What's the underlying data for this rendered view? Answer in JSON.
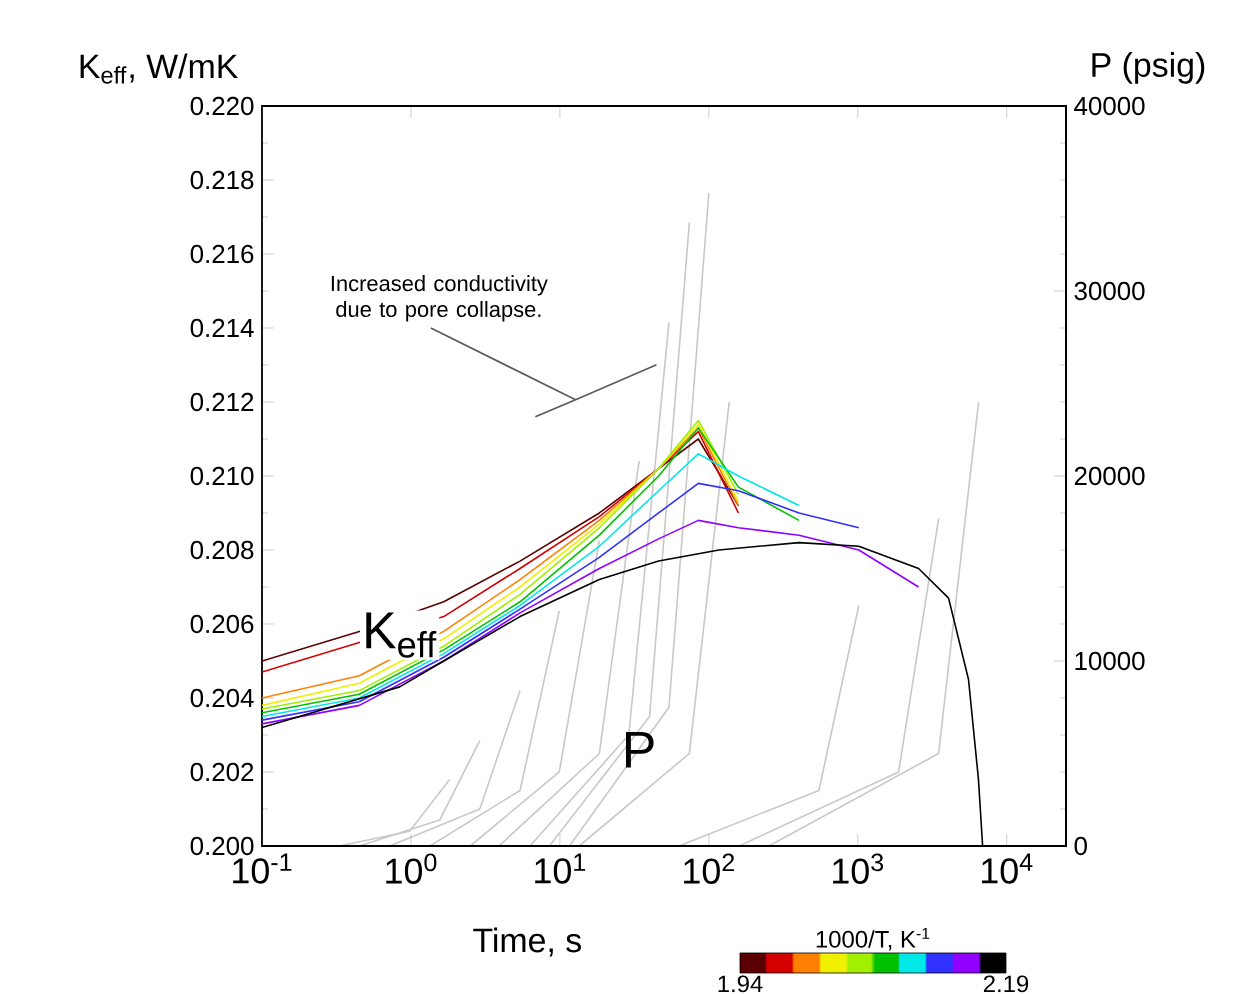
{
  "chart_data": {
    "type": "line",
    "xlabel": "Time, s",
    "ylabel": "K$_{eff}$, W/mK",
    "y2label": "P (psig)",
    "clabel": "1000/T, K$^{-1}$",
    "clim": [
      1.94,
      2.19
    ],
    "cticks": [
      1.94,
      2.19
    ],
    "log": "x",
    "grid": false,
    "marker": "none",
    "line_style": "solid",
    "xlim": [
      0.1,
      25000
    ],
    "xticks": [
      {
        "value": 0.1,
        "label": "10$^{-1}$"
      },
      {
        "value": 1,
        "label": "10$^{0}$"
      },
      {
        "value": 10,
        "label": "10$^{1}$"
      },
      {
        "value": 100,
        "label": "10$^{2}$"
      },
      {
        "value": 1000,
        "label": "10$^{3}$"
      },
      {
        "value": 10000,
        "label": "10$^{4}$"
      }
    ],
    "ylim": [
      0.2,
      0.22
    ],
    "yticks": [
      {
        "value": 0.2,
        "label": "0.200"
      },
      {
        "value": 0.202,
        "label": "0.202"
      },
      {
        "value": 0.204,
        "label": "0.204"
      },
      {
        "value": 0.206,
        "label": "0.206"
      },
      {
        "value": 0.208,
        "label": "0.208"
      },
      {
        "value": 0.21,
        "label": "0.210"
      },
      {
        "value": 0.212,
        "label": "0.212"
      },
      {
        "value": 0.214,
        "label": "0.214"
      },
      {
        "value": 0.216,
        "label": "0.216"
      },
      {
        "value": 0.218,
        "label": "0.218"
      },
      {
        "value": 0.22,
        "label": "0.220"
      }
    ],
    "y2lim": [
      0,
      40000
    ],
    "y2ticks": [
      0,
      10000,
      20000,
      30000,
      40000
    ],
    "annotations": [
      "Increased conductivity due to pore collapse.",
      {
        "text": "K$_{eff}$",
        "x": 0.84,
        "y": 0.2057
      },
      {
        "text": "P",
        "x": 34,
        "y": 0.2026
      }
    ],
    "x": [
      0.1,
      0.45,
      1.66,
      5.4,
      18.4,
      46,
      85,
      158,
      403,
      1016,
      2560
    ],
    "series": [
      {
        "color": "#c8c8c8",
        "axis": "y2",
        "x": [
          0.33,
          0.98,
          1.82
        ],
        "values": [
          0,
          800,
          3600
        ]
      },
      {
        "color": "#c8c8c8",
        "axis": "y2",
        "x": [
          0.45,
          1.56,
          2.9
        ],
        "values": [
          0,
          1400,
          5700
        ]
      },
      {
        "color": "#c8c8c8",
        "axis": "y2",
        "x": [
          0.72,
          2.9,
          5.4
        ],
        "values": [
          0,
          2000,
          8400
        ]
      },
      {
        "color": "#c8c8c8",
        "axis": "y2",
        "x": [
          1.34,
          5.4,
          9.9
        ],
        "values": [
          0,
          3000,
          12700
        ]
      },
      {
        "color": "#c8c8c8",
        "axis": "y2",
        "x": [
          2.5,
          9.9,
          18.4
        ],
        "values": [
          0,
          4000,
          16500
        ]
      },
      {
        "color": "#c8c8c8",
        "axis": "y2",
        "x": [
          3.9,
          18.4,
          34
        ],
        "values": [
          0,
          5000,
          20800
        ]
      },
      {
        "color": "#c8c8c8",
        "axis": "y2",
        "x": [
          6.3,
          29,
          54
        ],
        "values": [
          0,
          6000,
          28300
        ]
      },
      {
        "color": "#c8c8c8",
        "axis": "y2",
        "x": [
          8.5,
          40,
          74
        ],
        "values": [
          0,
          7000,
          33700
        ]
      },
      {
        "color": "#c8c8c8",
        "axis": "y2",
        "x": [
          11.6,
          54,
          100
        ],
        "values": [
          0,
          7500,
          35300
        ]
      },
      {
        "color": "#c8c8c8",
        "axis": "y2",
        "x": [
          13.5,
          74,
          137
        ],
        "values": [
          0,
          5000,
          24000
        ]
      },
      {
        "color": "#c8c8c8",
        "axis": "y2",
        "x": [
          63,
          548,
          1016
        ],
        "values": [
          0,
          3000,
          13000
        ]
      },
      {
        "color": "#c8c8c8",
        "axis": "y2",
        "x": [
          160,
          1880,
          3490
        ],
        "values": [
          0,
          4000,
          17700
        ]
      },
      {
        "color": "#c8c8c8",
        "axis": "y2",
        "x": [
          253,
          3490,
          6470
        ],
        "values": [
          0,
          5000,
          24000
        ]
      },
      {
        "color": "#5a0000",
        "values": [
          0.205,
          0.2058,
          0.2066,
          0.2077,
          0.209,
          0.2102,
          0.211,
          0.2092,
          null,
          null,
          null
        ]
      },
      {
        "color": "#d40000",
        "values": [
          0.2047,
          0.2055,
          0.2062,
          0.2075,
          0.2089,
          0.2102,
          0.2112,
          0.209,
          null,
          null,
          null
        ]
      },
      {
        "color": "#ff8000",
        "values": [
          0.204,
          0.2046,
          0.2058,
          0.2072,
          0.2088,
          0.2102,
          0.2113,
          0.2092,
          null,
          null,
          null
        ]
      },
      {
        "color": "#f0f000",
        "values": [
          0.2038,
          0.2044,
          0.2056,
          0.207,
          0.2087,
          0.2102,
          0.2114,
          0.2093,
          null,
          null,
          null
        ]
      },
      {
        "color": "#a0f000",
        "values": [
          0.2037,
          0.2042,
          0.2054,
          0.2068,
          0.2086,
          0.2102,
          0.2115,
          0.2095,
          null,
          null,
          null
        ]
      },
      {
        "color": "#00c000",
        "values": [
          0.2036,
          0.2041,
          0.2053,
          0.2066,
          0.2084,
          0.21,
          0.2113,
          0.2097,
          0.2088,
          null,
          null
        ]
      },
      {
        "color": "#00e8e8",
        "values": [
          0.2035,
          0.204,
          0.2052,
          0.2065,
          0.2081,
          0.2096,
          0.2106,
          0.21,
          0.2092,
          null,
          null
        ]
      },
      {
        "color": "#3030ff",
        "values": [
          0.2034,
          0.2039,
          0.2051,
          0.2064,
          0.2078,
          0.209,
          0.2098,
          0.2096,
          0.209,
          0.2086,
          null
        ]
      },
      {
        "color": "#9000ff",
        "values": [
          0.2033,
          0.2038,
          0.205,
          0.2063,
          0.2075,
          0.2083,
          0.2088,
          0.2086,
          0.2084,
          0.208,
          0.207
        ]
      },
      {
        "color": "#000000",
        "x": [
          0.1,
          0.84,
          1.66,
          5.4,
          18.4,
          46,
          117,
          403,
          1016,
          2560,
          4070,
          5540,
          6460,
          6890
        ],
        "values": [
          0.2032,
          0.2043,
          0.205,
          0.2062,
          0.2072,
          0.2077,
          0.208,
          0.2082,
          0.2081,
          0.2075,
          0.2067,
          0.2045,
          0.2018,
          0.2
        ]
      }
    ]
  }
}
